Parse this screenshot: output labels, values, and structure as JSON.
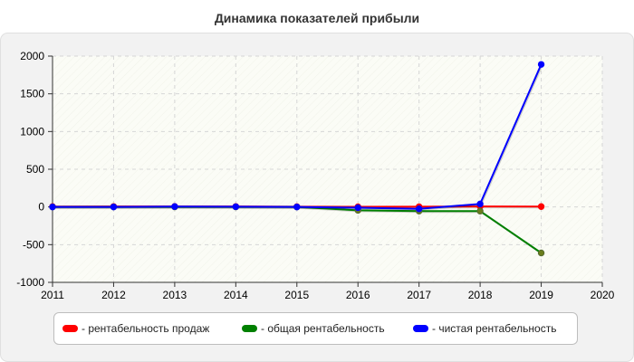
{
  "chart_data": {
    "type": "line",
    "title": "Динамика показателей прибыли",
    "xlabel": "",
    "ylabel": "",
    "x": [
      2011,
      2012,
      2013,
      2014,
      2015,
      2016,
      2017,
      2018,
      2019
    ],
    "xlim": [
      2011,
      2020
    ],
    "x_ticks": [
      "2011",
      "2012",
      "2013",
      "2014",
      "2015",
      "2016",
      "2017",
      "2018",
      "2019",
      "2020"
    ],
    "ylim": [
      -1000,
      2000
    ],
    "y_ticks": [
      "-1000",
      "-500",
      "0",
      "500",
      "1000",
      "1500",
      "2000"
    ],
    "grid": true,
    "legend_position": "bottom",
    "series": [
      {
        "name": "- рентабельность продаж",
        "color": "#ff0000",
        "values": [
          5,
          6,
          7,
          6,
          4,
          2,
          3,
          6,
          5
        ]
      },
      {
        "name": "- общая рентабельность",
        "color": "#008000",
        "values": [
          1,
          1,
          1,
          1,
          0,
          -45,
          -55,
          -55,
          -610
        ]
      },
      {
        "name": "- чистая рентабельность",
        "color": "#0000ff",
        "values": [
          0,
          0,
          5,
          3,
          0,
          -10,
          -25,
          40,
          1890
        ]
      }
    ]
  }
}
